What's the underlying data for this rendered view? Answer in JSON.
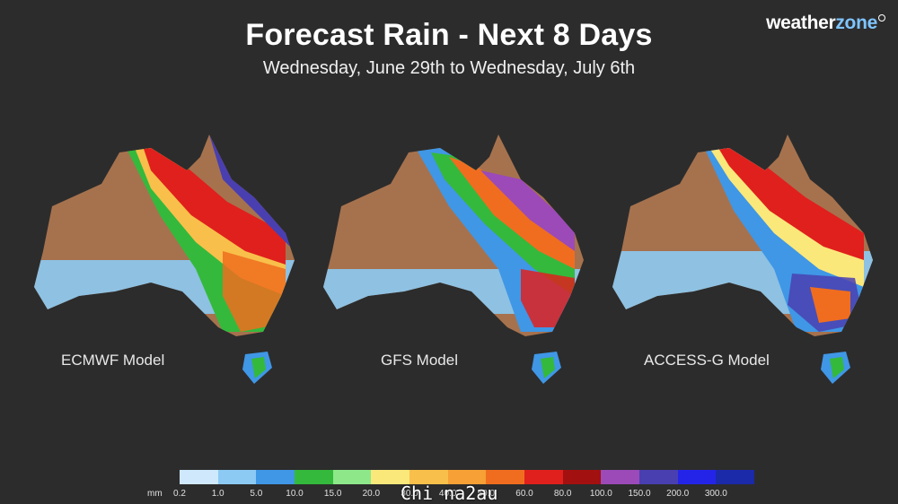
{
  "header": {
    "title": "Forecast Rain - Next 8 Days",
    "subtitle": "Wednesday, June 29th to Wednesday, July 6th"
  },
  "brand": {
    "part1": "weather",
    "part2": "zone"
  },
  "maps": [
    {
      "label": "ECMWF Model"
    },
    {
      "label": "GFS Model"
    },
    {
      "label": "ACCESS-G Model"
    }
  ],
  "legend": {
    "unit": "mm",
    "ticks": [
      "0.2",
      "1.0",
      "5.0",
      "10.0",
      "15.0",
      "20.0",
      "30.0",
      "40.0",
      "50.0",
      "60.0",
      "80.0",
      "100.0",
      "150.0",
      "200.0",
      "300.0"
    ],
    "colors": [
      "#cfe8fb",
      "#8ccaf3",
      "#3f97e6",
      "#34b93c",
      "#8ee88a",
      "#fbe87a",
      "#f8c04a",
      "#f6a035",
      "#f06d1f",
      "#e0201d",
      "#a31010",
      "#9b4ab8",
      "#4a3fb0",
      "#2424e8",
      "#1b2aa8"
    ]
  },
  "watermark": "Chi na2au"
}
